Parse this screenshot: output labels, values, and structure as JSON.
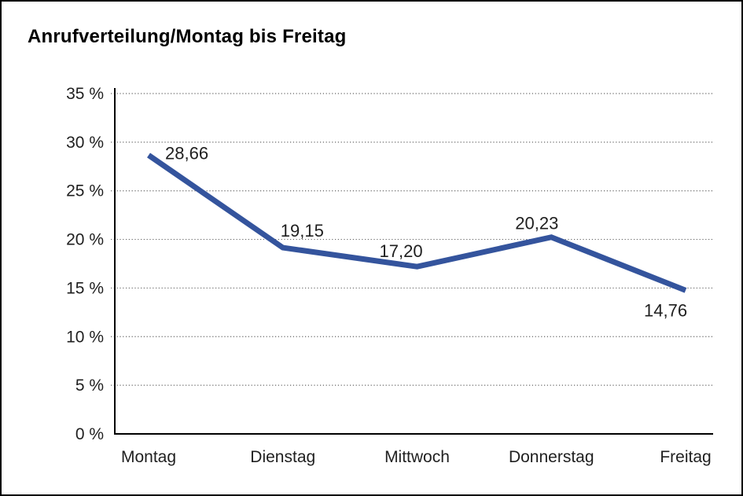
{
  "chart_data": {
    "type": "line",
    "title": "Anrufverteilung/Montag bis Freitag",
    "categories": [
      "Montag",
      "Dienstag",
      "Mittwoch",
      "Donnerstag",
      "Freitag"
    ],
    "values": [
      28.66,
      19.15,
      17.2,
      20.23,
      14.76
    ],
    "value_labels": [
      "28,66",
      "19,15",
      "17,20",
      "20,23",
      "14,76"
    ],
    "y_axis": {
      "tick_values": [
        0,
        5,
        10,
        15,
        20,
        25,
        30,
        35
      ],
      "tick_labels": [
        "0 %",
        "5 %",
        "10 %",
        "15 %",
        "20 %",
        "25 %",
        "30 %",
        "35 %"
      ]
    },
    "ylim": [
      0,
      35
    ],
    "xlabel": "",
    "ylabel": "",
    "grid": "dotted-horizontal",
    "legend": "none",
    "colors": {
      "line": "#34549D",
      "grid": "#666666",
      "axis": "#000000",
      "text": "#1f1f1f",
      "background": "#ffffff",
      "frame_border": "#000000"
    }
  }
}
